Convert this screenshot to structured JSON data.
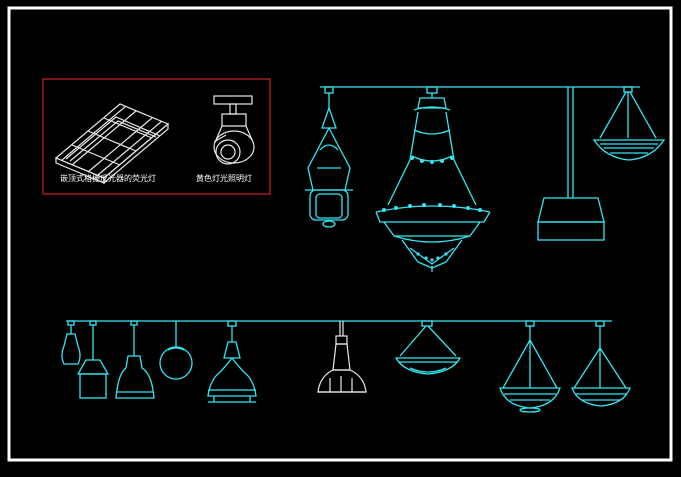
{
  "drawing": {
    "background": "#000000",
    "frame_color": "#ffffff",
    "line_color": "#33e6f2",
    "box_color": "#cc2222",
    "inset_box": {
      "label_left": "嵌顶式格栅反光器的荧光灯",
      "label_right": "黄色灯光照明灯"
    }
  },
  "symbols": [
    "recessed-grille-fluorescent-icon",
    "track-spotlight-icon",
    "cage-lantern-pendant-icon",
    "crystal-chandelier-icon",
    "square-drum-pendant-icon",
    "inverted-bowl-pendant-icon",
    "pendant-lamp-row-icon"
  ]
}
